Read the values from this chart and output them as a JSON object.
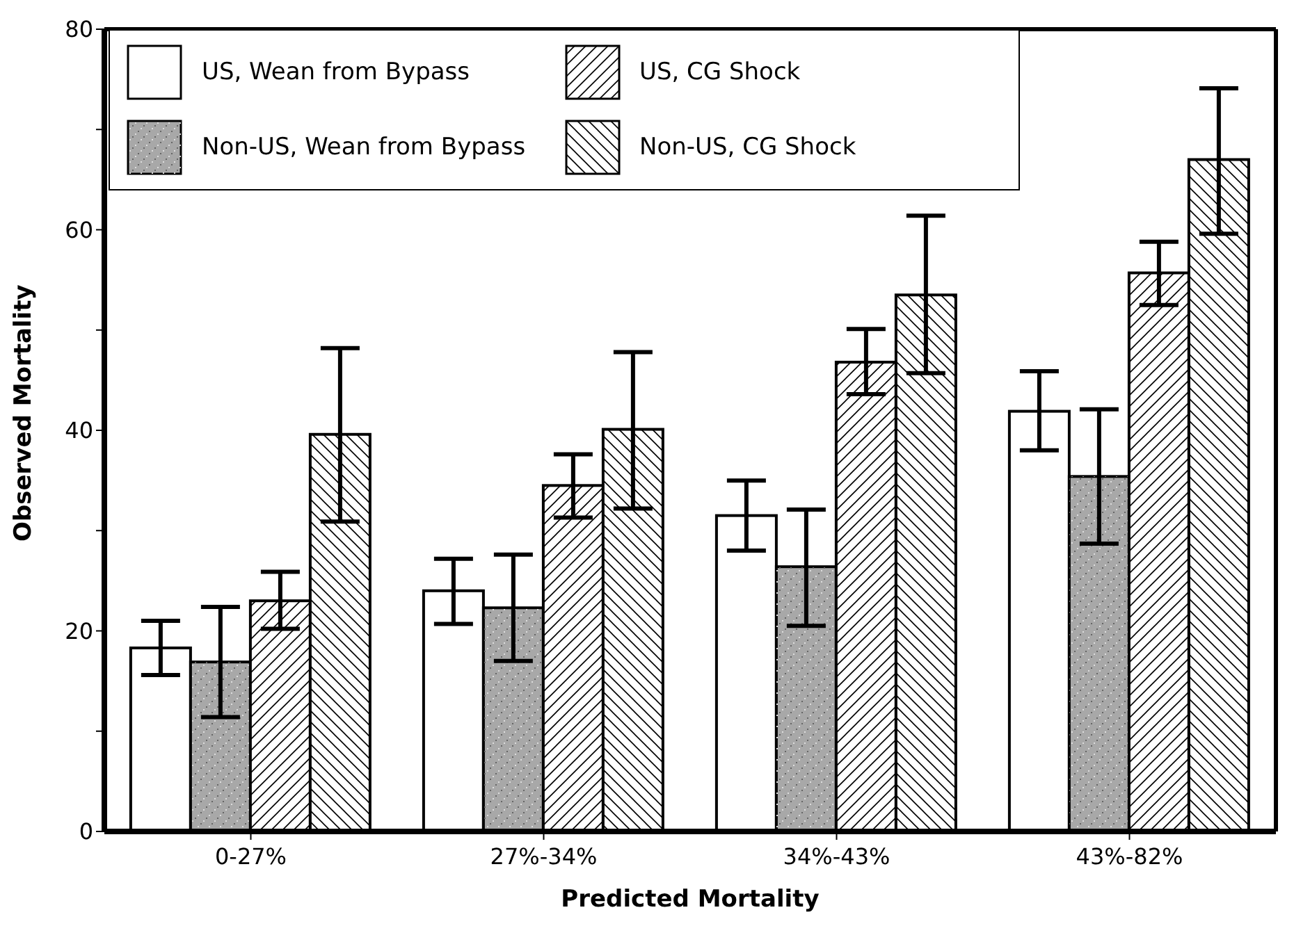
{
  "chart_data": {
    "type": "bar",
    "xlabel": "Predicted Mortality",
    "ylabel": "Observed Mortality",
    "categories": [
      "0-27%",
      "27%-34%",
      "34%-43%",
      "43%-82%"
    ],
    "series": [
      {
        "name": "US, Wean from Bypass",
        "color": "#ffffff",
        "values": [
          18.3,
          24,
          31.5,
          41.9
        ],
        "errors": [
          [
            15.6,
            21
          ],
          [
            20.7,
            27.2
          ],
          [
            28,
            35
          ],
          [
            38,
            45.9
          ]
        ]
      },
      {
        "name": "Non-US, Wean from Bypass",
        "color": "#a8a8a8",
        "values": [
          16.9,
          22.3,
          26.4,
          35.4
        ],
        "errors": [
          [
            11.4,
            22.4
          ],
          [
            17,
            27.6
          ],
          [
            20.5,
            32.1
          ],
          [
            28.7,
            42.1
          ]
        ]
      },
      {
        "name": "US, CG Shock",
        "color": "#ffffff",
        "values": [
          23,
          34.5,
          46.8,
          55.7
        ],
        "errors": [
          [
            20.2,
            25.9
          ],
          [
            31.3,
            37.6
          ],
          [
            43.6,
            50.1
          ],
          [
            52.5,
            58.8
          ]
        ]
      },
      {
        "name": "Non-US, CG Shock",
        "color": "#ffffff",
        "values": [
          39.6,
          40.1,
          53.5,
          67
        ],
        "errors": [
          [
            30.9,
            48.2
          ],
          [
            32.2,
            47.8
          ],
          [
            45.7,
            61.4
          ],
          [
            59.6,
            74.1
          ]
        ]
      }
    ],
    "ylim": [
      0,
      80
    ],
    "yticks": [
      0,
      {
        "value": 10,
        "label": null
      },
      20,
      {
        "value": 30,
        "label": null
      },
      40,
      {
        "value": 50,
        "label": null
      },
      60,
      {
        "value": 70,
        "label": null
      },
      80
    ],
    "grid": false,
    "legend": "top left"
  }
}
